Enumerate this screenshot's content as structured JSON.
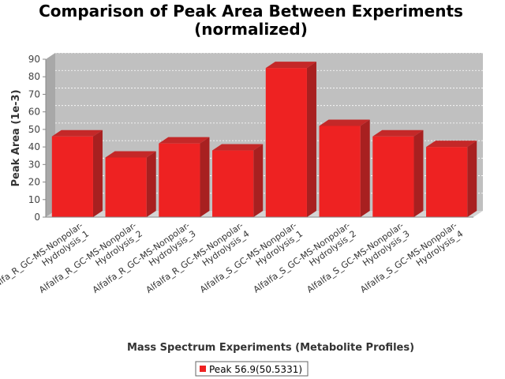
{
  "chart_data": {
    "type": "bar",
    "title_lines": [
      "Comparison of Peak Area Between Experiments",
      "(normalized)"
    ],
    "xlabel": "Mass Spectrum Experiments (Metabolite Profiles)",
    "ylabel": "Peak Area (1e-3)",
    "ylim": [
      0,
      90
    ],
    "yticks": [
      0,
      10,
      20,
      30,
      40,
      50,
      60,
      70,
      80,
      90
    ],
    "grid": true,
    "legend_position": "bottom-center",
    "categories": [
      [
        "Alfalfa_R_GC-MS-Nonpolar-",
        "Hydrolysis_1"
      ],
      [
        "Alfalfa_R_GC-MS-Nonpolar-",
        "Hydrolysis_2"
      ],
      [
        "Alfalfa_R_GC-MS-Nonpolar-",
        "Hydrolysis_3"
      ],
      [
        "Alfalfa_R_GC-MS-Nonpolar-",
        "Hydrolysis_4"
      ],
      [
        "Alfalfa_S_GC-MS-Nonpolar-",
        "Hydrolysis_1"
      ],
      [
        "Alfalfa_S_GC-MS-Nonpolar-",
        "Hydrolysis_2"
      ],
      [
        "Alfalfa_S_GC-MS-Nonpolar-",
        "Hydrolysis_3"
      ],
      [
        "Alfalfa_S_GC-MS-Nonpolar-",
        "Hydrolysis_4"
      ]
    ],
    "series": [
      {
        "name": "Peak 56.9(50.5331)",
        "color": "#ee2222",
        "values": [
          46,
          34,
          42,
          38,
          85,
          52,
          46,
          40
        ]
      }
    ]
  }
}
